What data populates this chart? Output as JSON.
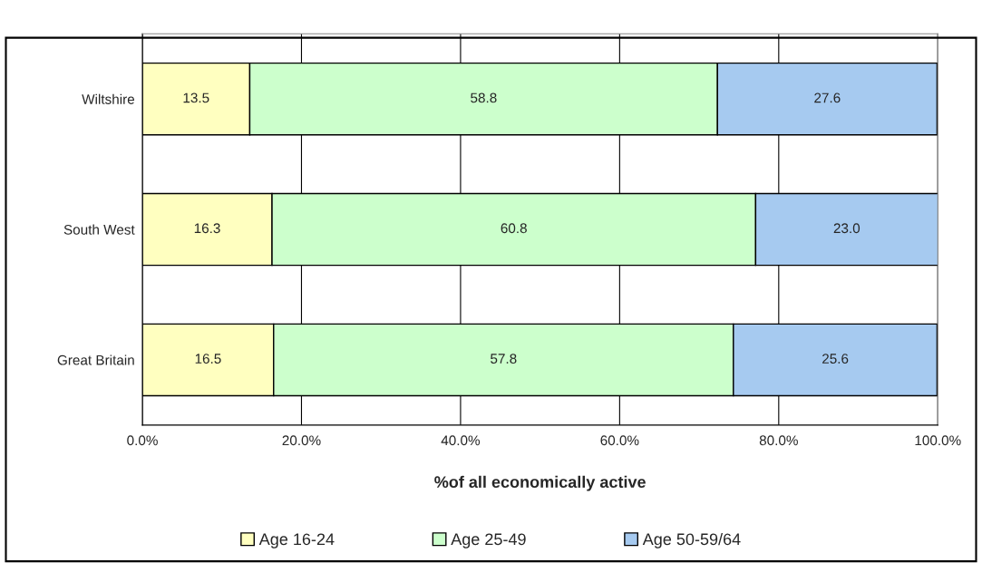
{
  "chart_data": {
    "type": "bar",
    "orientation": "horizontal",
    "stacked": true,
    "categories": [
      "Wiltshire",
      "South West",
      "Great Britain"
    ],
    "series": [
      {
        "name": "Age 16-24",
        "color": "#ffffc0",
        "values": [
          13.5,
          16.3,
          16.5
        ]
      },
      {
        "name": "Age 25-49",
        "color": "#ccffcc",
        "values": [
          58.8,
          60.8,
          57.8
        ]
      },
      {
        "name": "Age 50-59/64",
        "color": "#a6caf0",
        "values": [
          27.6,
          23.0,
          25.6
        ]
      }
    ],
    "xlim": [
      0,
      100
    ],
    "xticks": [
      {
        "value": 0,
        "label": "0.0%"
      },
      {
        "value": 20,
        "label": "20.0%"
      },
      {
        "value": 40,
        "label": "40.0%"
      },
      {
        "value": 60,
        "label": "60.0%"
      },
      {
        "value": 80,
        "label": "80.0%"
      },
      {
        "value": 100,
        "label": "100.0%"
      }
    ],
    "xlabel": "%of all economically active",
    "value_labels": [
      [
        "13.5",
        "16.3",
        "16.5"
      ],
      [
        "58.8",
        "60.8",
        "57.8"
      ],
      [
        "27.6",
        "23.0",
        "25.6"
      ]
    ],
    "grid": "x",
    "legend": "bottom"
  }
}
